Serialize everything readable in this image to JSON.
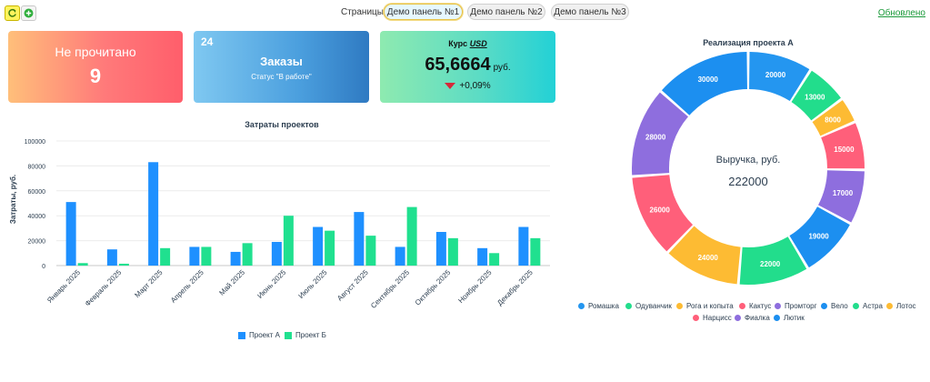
{
  "toolbar": {
    "refresh_icon": "refresh-icon",
    "add_icon": "plus-circle-icon",
    "pages_label": "Страницы:",
    "tabs": [
      {
        "label": "Демо панель №1",
        "active": true
      },
      {
        "label": "Демо панель №2",
        "active": false
      },
      {
        "label": "Демо панель №3",
        "active": false
      }
    ],
    "updated_label": "Обновлено"
  },
  "cards": {
    "unread": {
      "title": "Не прочитано",
      "count": "9",
      "colors": [
        "#ffbf7a",
        "#ff5e6b"
      ]
    },
    "orders": {
      "count": "24",
      "title": "Заказы",
      "status": "Статус \"В работе\"",
      "colors": [
        "#7fc8f1",
        "#2f7ac2"
      ]
    },
    "rate": {
      "title_prefix": "Курс",
      "currency": "USD",
      "value": "65,6664",
      "unit": "руб.",
      "change": "+0,09%",
      "trend_icon": "down-triangle-icon",
      "colors": [
        "#8eeab0",
        "#23d1d6"
      ]
    }
  },
  "chart_data": [
    {
      "type": "bar",
      "title": "Затраты проектов",
      "ylabel": "Затраты, руб.",
      "xlabel": "",
      "ylim": [
        0,
        100000
      ],
      "yticks": [
        "0",
        "20000",
        "40000",
        "60000",
        "80000",
        "100000"
      ],
      "grid": true,
      "legend_position": "bottom",
      "categories": [
        "Январь 2025",
        "Февраль 2025",
        "Март 2025",
        "Апрель 2025",
        "Май 2025",
        "Июнь 2025",
        "Июль 2025",
        "Август 2025",
        "Сентябрь 2025",
        "Октябрь 2025",
        "Ноябрь 2025",
        "Декабрь 2025"
      ],
      "series": [
        {
          "name": "Проект А",
          "color": "#1e90ff",
          "values": [
            51000,
            13000,
            83000,
            15000,
            11000,
            19000,
            31000,
            43000,
            15000,
            27000,
            14000,
            31000
          ]
        },
        {
          "name": "Проект Б",
          "color": "#20e08f",
          "values": [
            2000,
            1500,
            14000,
            15000,
            18000,
            40000,
            28000,
            24000,
            47000,
            22000,
            10000,
            22000
          ]
        }
      ]
    },
    {
      "type": "pie",
      "title": "Реализация проекта А",
      "center_label": "Выручка, руб.",
      "center_value": "222000",
      "legend_position": "bottom",
      "slices": [
        {
          "name": "Ромашка",
          "value": 20000,
          "color": "#2496f0"
        },
        {
          "name": "Одуванчик",
          "value": 13000,
          "color": "#22dd8c"
        },
        {
          "name": "Рога и копыта",
          "value": 8000,
          "color": "#fdbb33"
        },
        {
          "name": "Кактус",
          "value": 15000,
          "color": "#ff5f7a"
        },
        {
          "name": "Промторг",
          "value": 17000,
          "color": "#8e6ede"
        },
        {
          "name": "Вело",
          "value": 19000,
          "color": "#1c8ff0"
        },
        {
          "name": "Астра",
          "value": 22000,
          "color": "#22dd8c"
        },
        {
          "name": "Лотос",
          "value": 24000,
          "color": "#fdbb33"
        },
        {
          "name": "Нарцисс",
          "value": 26000,
          "color": "#ff5f7a"
        },
        {
          "name": "Фиалка",
          "value": 28000,
          "color": "#8e6ede"
        },
        {
          "name": "Лютик",
          "value": 30000,
          "color": "#1c8ff0"
        }
      ]
    }
  ]
}
